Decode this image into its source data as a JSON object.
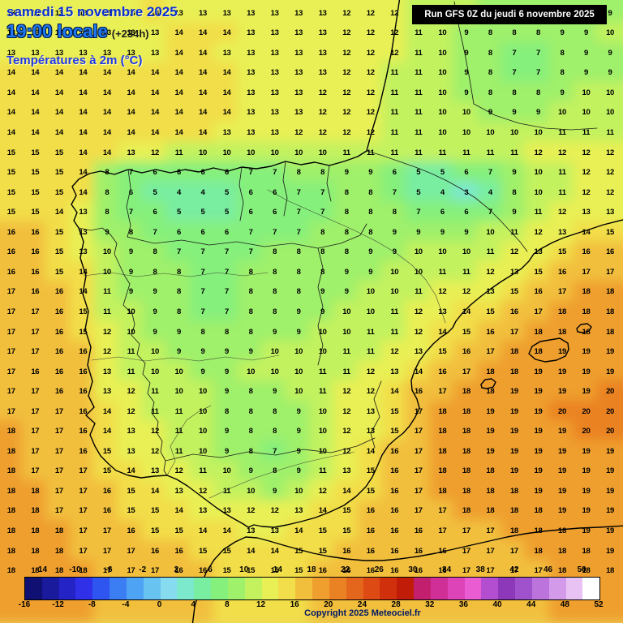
{
  "header": {
    "date": "samedi 15 novembre 2025",
    "time": "19:00 locale",
    "offset": "(+234h)",
    "layer": "Températures à 2m (°C)"
  },
  "run_box": {
    "label": "Run GFS 0Z du jeudi 6 novembre 2025"
  },
  "footer": {
    "copyright": "Copyright 2025 Meteociel.fr"
  },
  "colorbar": {
    "unit": "°C",
    "min": -16,
    "max": 52,
    "step": 2,
    "top_labels": [
      -14,
      -10,
      -6,
      -2,
      2,
      6,
      10,
      14,
      18,
      22,
      26,
      30,
      34,
      38,
      42,
      46,
      50
    ],
    "bottom_labels": [
      -16,
      -12,
      -8,
      -4,
      0,
      4,
      8,
      12,
      16,
      20,
      24,
      28,
      32,
      36,
      40,
      44,
      48,
      52
    ],
    "colors": [
      "#101073",
      "#1a1a9c",
      "#2424c6",
      "#3030e8",
      "#2f55f0",
      "#3b7df2",
      "#4fa3f5",
      "#68c3f0",
      "#86dcee",
      "#7ce8cc",
      "#79eda0",
      "#86f07c",
      "#9ff06a",
      "#c3f25e",
      "#e8f055",
      "#f2de4a",
      "#f2bf3c",
      "#ef9f2e",
      "#ea8224",
      "#e4661c",
      "#dd4a14",
      "#d0300c",
      "#c01c08",
      "#c2206e",
      "#cf2f96",
      "#dd44b8",
      "#e95cd2",
      "#b44ed0",
      "#8c38b8",
      "#a052cc",
      "#bc74dc",
      "#d49aea",
      "#e9c2f4",
      "#ffffff"
    ]
  },
  "grid": {
    "cols": 26,
    "rows": 29,
    "values": [
      [
        13,
        13,
        13,
        13,
        13,
        13,
        14,
        13,
        13,
        13,
        13,
        13,
        13,
        13,
        12,
        12,
        12,
        11,
        10,
        10,
        9,
        9,
        9,
        9,
        9,
        9
      ],
      [
        13,
        13,
        13,
        13,
        13,
        13,
        13,
        14,
        14,
        14,
        13,
        13,
        13,
        13,
        12,
        12,
        12,
        11,
        10,
        9,
        8,
        8,
        8,
        9,
        9,
        10
      ],
      [
        13,
        13,
        13,
        13,
        13,
        13,
        13,
        14,
        14,
        13,
        13,
        13,
        13,
        13,
        12,
        12,
        12,
        11,
        10,
        9,
        8,
        7,
        7,
        8,
        9,
        9
      ],
      [
        14,
        14,
        14,
        14,
        14,
        14,
        14,
        14,
        14,
        14,
        13,
        13,
        13,
        13,
        12,
        12,
        11,
        11,
        10,
        9,
        8,
        7,
        7,
        8,
        9,
        9
      ],
      [
        14,
        14,
        14,
        14,
        14,
        14,
        14,
        14,
        14,
        14,
        13,
        13,
        13,
        12,
        12,
        12,
        11,
        11,
        10,
        9,
        8,
        8,
        8,
        9,
        10,
        10
      ],
      [
        14,
        14,
        14,
        14,
        14,
        14,
        14,
        14,
        14,
        14,
        13,
        13,
        13,
        12,
        12,
        12,
        11,
        11,
        10,
        10,
        9,
        9,
        9,
        10,
        10,
        10
      ],
      [
        14,
        14,
        14,
        14,
        14,
        14,
        14,
        14,
        14,
        13,
        13,
        13,
        12,
        12,
        12,
        12,
        11,
        11,
        10,
        10,
        10,
        10,
        10,
        11,
        11,
        11
      ],
      [
        15,
        15,
        15,
        14,
        14,
        13,
        12,
        11,
        10,
        10,
        10,
        10,
        10,
        10,
        11,
        11,
        11,
        11,
        11,
        11,
        11,
        11,
        12,
        12,
        12,
        12
      ],
      [
        15,
        15,
        15,
        14,
        8,
        7,
        6,
        6,
        6,
        6,
        7,
        7,
        8,
        8,
        9,
        9,
        6,
        5,
        5,
        6,
        7,
        9,
        10,
        11,
        12,
        12
      ],
      [
        15,
        15,
        15,
        14,
        8,
        6,
        5,
        4,
        4,
        5,
        6,
        6,
        7,
        7,
        8,
        8,
        7,
        5,
        4,
        3,
        4,
        8,
        10,
        11,
        12,
        12
      ],
      [
        15,
        15,
        14,
        13,
        8,
        7,
        6,
        5,
        5,
        5,
        6,
        6,
        7,
        7,
        8,
        8,
        8,
        7,
        6,
        6,
        7,
        9,
        11,
        12,
        13,
        13
      ],
      [
        16,
        16,
        15,
        13,
        9,
        8,
        7,
        6,
        6,
        6,
        7,
        7,
        7,
        8,
        8,
        8,
        9,
        9,
        9,
        9,
        10,
        11,
        12,
        13,
        14,
        15
      ],
      [
        16,
        16,
        15,
        13,
        10,
        9,
        8,
        7,
        7,
        7,
        7,
        8,
        8,
        8,
        8,
        9,
        9,
        10,
        10,
        10,
        11,
        12,
        13,
        15,
        16,
        16
      ],
      [
        16,
        16,
        15,
        14,
        10,
        9,
        8,
        8,
        7,
        7,
        8,
        8,
        8,
        8,
        9,
        9,
        10,
        10,
        11,
        11,
        12,
        13,
        15,
        16,
        17,
        17
      ],
      [
        17,
        16,
        16,
        14,
        11,
        9,
        9,
        8,
        7,
        7,
        8,
        8,
        8,
        9,
        9,
        10,
        10,
        11,
        12,
        12,
        13,
        15,
        16,
        17,
        18,
        18
      ],
      [
        17,
        17,
        16,
        15,
        11,
        10,
        9,
        8,
        7,
        7,
        8,
        8,
        9,
        9,
        10,
        10,
        11,
        12,
        13,
        14,
        15,
        16,
        17,
        18,
        18,
        18
      ],
      [
        17,
        17,
        16,
        15,
        12,
        10,
        9,
        9,
        8,
        8,
        8,
        9,
        9,
        10,
        10,
        11,
        11,
        12,
        14,
        15,
        16,
        17,
        18,
        18,
        18,
        18
      ],
      [
        17,
        17,
        16,
        16,
        12,
        11,
        10,
        9,
        9,
        9,
        9,
        10,
        10,
        10,
        11,
        11,
        12,
        13,
        15,
        16,
        17,
        18,
        18,
        19,
        19,
        19
      ],
      [
        17,
        16,
        16,
        16,
        13,
        11,
        10,
        10,
        9,
        9,
        10,
        10,
        10,
        11,
        11,
        12,
        13,
        14,
        16,
        17,
        18,
        18,
        19,
        19,
        19,
        19
      ],
      [
        17,
        17,
        16,
        16,
        13,
        12,
        11,
        10,
        10,
        9,
        8,
        9,
        10,
        11,
        12,
        12,
        14,
        16,
        17,
        18,
        18,
        19,
        19,
        19,
        19,
        20
      ],
      [
        17,
        17,
        17,
        16,
        14,
        12,
        11,
        11,
        10,
        8,
        8,
        8,
        9,
        10,
        12,
        13,
        15,
        17,
        18,
        18,
        19,
        19,
        19,
        20,
        20,
        20
      ],
      [
        18,
        17,
        17,
        16,
        14,
        13,
        12,
        11,
        10,
        9,
        8,
        8,
        9,
        10,
        12,
        13,
        15,
        17,
        18,
        18,
        19,
        19,
        19,
        19,
        20,
        20
      ],
      [
        18,
        17,
        17,
        16,
        15,
        13,
        12,
        11,
        10,
        9,
        8,
        7,
        9,
        10,
        12,
        14,
        16,
        17,
        18,
        18,
        19,
        19,
        19,
        19,
        19,
        19
      ],
      [
        18,
        17,
        17,
        17,
        15,
        14,
        13,
        12,
        11,
        10,
        9,
        8,
        9,
        11,
        13,
        15,
        16,
        17,
        18,
        18,
        18,
        19,
        19,
        19,
        19,
        19
      ],
      [
        18,
        18,
        17,
        17,
        16,
        15,
        14,
        13,
        12,
        11,
        10,
        9,
        10,
        12,
        14,
        15,
        16,
        17,
        18,
        18,
        18,
        18,
        19,
        19,
        19,
        19
      ],
      [
        18,
        18,
        17,
        17,
        16,
        15,
        15,
        14,
        13,
        13,
        12,
        12,
        13,
        14,
        15,
        16,
        16,
        17,
        17,
        18,
        18,
        18,
        18,
        19,
        19,
        19
      ],
      [
        18,
        18,
        18,
        17,
        17,
        16,
        15,
        15,
        14,
        14,
        13,
        13,
        14,
        15,
        15,
        16,
        16,
        16,
        17,
        17,
        17,
        18,
        18,
        18,
        19,
        19
      ],
      [
        18,
        18,
        18,
        17,
        17,
        17,
        16,
        16,
        15,
        15,
        14,
        14,
        15,
        15,
        16,
        16,
        16,
        16,
        16,
        17,
        17,
        17,
        18,
        18,
        18,
        19
      ],
      [
        18,
        18,
        18,
        18,
        17,
        17,
        17,
        16,
        16,
        15,
        15,
        15,
        15,
        16,
        16,
        16,
        16,
        16,
        16,
        17,
        17,
        17,
        17,
        18,
        18,
        18
      ]
    ]
  }
}
